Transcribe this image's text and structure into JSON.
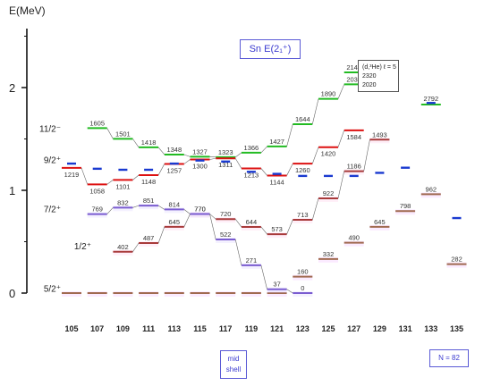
{
  "chart_data": {
    "type": "level-scheme",
    "y_axis_title": "E(MeV)",
    "y_ticks": [
      0,
      1,
      2
    ],
    "ylim": [
      0,
      2.6
    ],
    "title": "Sn E(2₁⁺)",
    "legend": {
      "title": "(d,³He) ℓ = 5",
      "values": [
        "2320",
        "2020"
      ]
    },
    "x_categories": [
      "105",
      "107",
      "109",
      "111",
      "113",
      "115",
      "117",
      "119",
      "121",
      "123",
      "125",
      "127",
      "129",
      "131",
      "133",
      "135"
    ],
    "annotations": {
      "mid_shell": "mid shell",
      "shell_closure": "N = 82"
    },
    "colors": {
      "11/2-": "#22bb22",
      "9/2+": "#dd1111",
      "7/2+": "#7a5cd0",
      "1/2+": "#a83a3a",
      "5/2+": "#a06a50",
      "2plus": "#1a3ad0"
    },
    "series": [
      {
        "name": "11/2⁻",
        "key": "11/2-",
        "label_keys": [
          "107",
          "109",
          "111",
          "113",
          "115",
          "117",
          "119",
          "121",
          "123",
          "125",
          "127"
        ],
        "label_values": [
          1605,
          1501,
          1418,
          1348,
          1327,
          1323,
          1366,
          1427,
          1644,
          1890,
          2031
        ],
        "values": [
          1.605,
          1.501,
          1.418,
          1.348,
          1.327,
          1.323,
          1.366,
          1.427,
          1.644,
          1.89,
          2.031
        ],
        "extra_label": "2148",
        "extra_value": 2.148,
        "extra_index": 11
      },
      {
        "name": "9/2⁺",
        "key": "9/2+",
        "label_keys": [
          "105",
          "107",
          "109",
          "111",
          "113",
          "115",
          "117",
          "119",
          "121",
          "123",
          "125",
          "127"
        ],
        "values": [
          1.219,
          1.058,
          1.101,
          1.148,
          1.257,
          1.3,
          1.311,
          1.213,
          1.144,
          1.26,
          1.42,
          1.584
        ],
        "label_values": [
          1219,
          1058,
          1101,
          1148,
          1257,
          1300,
          1311,
          1213,
          1144,
          1260,
          1420,
          1584
        ]
      },
      {
        "name": "7/2⁺",
        "key": "7/2+",
        "label_keys": [
          "107",
          "109",
          "111",
          "113",
          "115",
          "117",
          "119",
          "121",
          "123"
        ],
        "values": [
          0.769,
          0.832,
          0.851,
          0.814,
          0.77,
          0.522,
          0.271,
          0.037,
          0.0
        ],
        "label_values": [
          769,
          832,
          851,
          814,
          770,
          522,
          271,
          37,
          0
        ]
      },
      {
        "name": "1/2⁺",
        "key": "1/2+",
        "label_keys": [
          "109",
          "111",
          "113",
          "115",
          "117",
          "119",
          "121",
          "123",
          "125",
          "127",
          "129"
        ],
        "values": [
          0.402,
          0.487,
          0.645,
          0.77,
          0.72,
          0.644,
          0.573,
          0.713,
          0.922,
          1.186,
          1.493
        ],
        "label_values": [
          402,
          487,
          645,
          770,
          720,
          644,
          573,
          713,
          922,
          1186,
          1493
        ]
      },
      {
        "name": "5/2⁺",
        "key": "5/2+",
        "label_keys": [
          "105",
          "107",
          "109",
          "111",
          "113",
          "115",
          "117",
          "119",
          "121",
          "123",
          "125",
          "127",
          "129",
          "131",
          "133",
          "135"
        ],
        "values": [
          0,
          0,
          0,
          0,
          0,
          0,
          0,
          0,
          0,
          0.16,
          0.332,
          0.49,
          0.645,
          0.798,
          0.962,
          0.282
        ],
        "label_values": [
          null,
          null,
          null,
          null,
          null,
          null,
          null,
          null,
          null,
          160,
          332,
          490,
          645,
          798,
          962,
          282
        ]
      },
      {
        "name": "E(2₁⁺)",
        "key": "2plus",
        "label_keys": [
          "105",
          "107",
          "109",
          "111",
          "113",
          "115",
          "117",
          "119",
          "121",
          "123",
          "125",
          "127",
          "129",
          "131",
          "133",
          "135"
        ],
        "values": [
          1.26,
          1.21,
          1.2,
          1.2,
          1.26,
          1.29,
          1.28,
          1.18,
          1.16,
          1.14,
          1.14,
          1.14,
          1.17,
          1.22,
          1.85,
          0.73
        ]
      }
    ],
    "state_labels": [
      "11/2⁻",
      "9/2⁺",
      "7/2⁺",
      "1/2⁺",
      "5/2⁺"
    ],
    "extra_values": {
      "133": "2792"
    }
  }
}
